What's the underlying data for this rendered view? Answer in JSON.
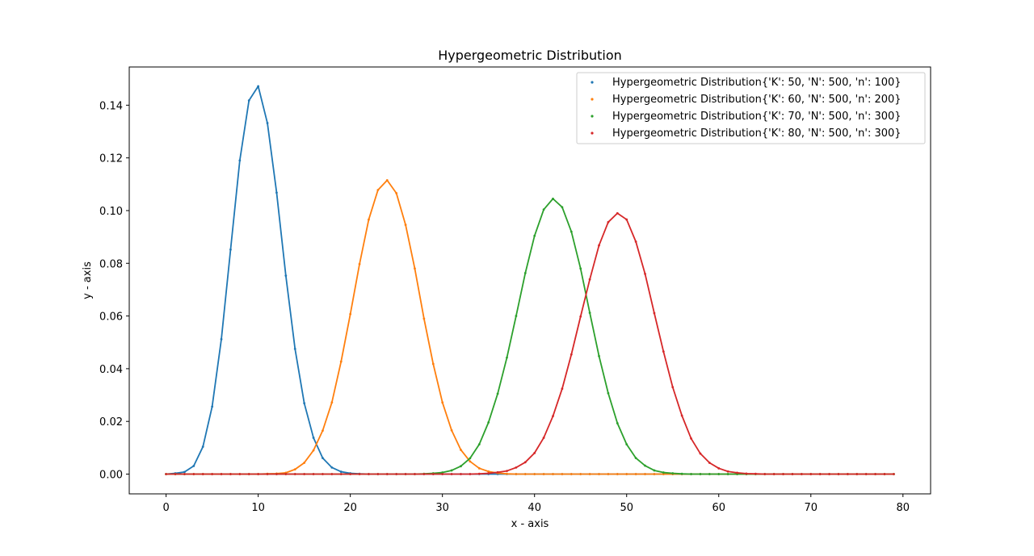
{
  "chart_data": {
    "type": "line",
    "title": "Hypergeometric Distribution",
    "xlabel": "x - axis",
    "ylabel": "y - axis",
    "xlim": [
      -4,
      83
    ],
    "ylim": [
      -0.0075,
      0.1545
    ],
    "xticks": [
      0,
      10,
      20,
      30,
      40,
      50,
      60,
      70,
      80
    ],
    "yticks": [
      0.0,
      0.02,
      0.04,
      0.06,
      0.08,
      0.1,
      0.12,
      0.14
    ],
    "ytick_labels": [
      "0.00",
      "0.02",
      "0.04",
      "0.06",
      "0.08",
      "0.10",
      "0.12",
      "0.14"
    ],
    "grid": false,
    "legend_position": "top-right",
    "x_range": [
      0,
      79
    ],
    "series": [
      {
        "name": "Hypergeometric Distribution{'K': 50, 'N': 500, 'n': 100}",
        "color": "#1f77b4",
        "values": [
          0.0,
          0.0003,
          0.0008,
          0.0031,
          0.0104,
          0.0256,
          0.0512,
          0.0852,
          0.119,
          0.1418,
          0.1472,
          0.1332,
          0.1068,
          0.0753,
          0.0475,
          0.0269,
          0.0138,
          0.0061,
          0.0025,
          0.0009,
          0.0003,
          0.0001,
          0,
          0,
          0,
          0,
          0,
          0,
          0,
          0,
          0,
          0,
          0,
          0,
          0,
          0,
          0,
          0,
          0,
          0,
          0,
          0,
          0,
          0,
          0,
          0,
          0,
          0,
          0,
          0,
          0,
          0,
          0,
          0,
          0,
          0,
          0,
          0,
          0,
          0,
          0,
          0,
          0,
          0,
          0,
          0,
          0,
          0,
          0,
          0,
          0,
          0,
          0,
          0,
          0,
          0,
          0,
          0,
          0,
          0
        ]
      },
      {
        "name": "Hypergeometric Distribution{'K': 60, 'N': 500, 'n': 200}",
        "color": "#ff7f0e",
        "values": [
          0,
          0,
          0,
          0,
          0,
          0,
          0,
          0,
          0,
          0,
          0,
          0.0001,
          0.0002,
          0.0005,
          0.0018,
          0.0043,
          0.009,
          0.0165,
          0.0272,
          0.0427,
          0.0607,
          0.0797,
          0.0966,
          0.1078,
          0.1115,
          0.1066,
          0.0946,
          0.078,
          0.059,
          0.0418,
          0.0272,
          0.0166,
          0.0092,
          0.0048,
          0.0022,
          0.001,
          0.0004,
          0.0001,
          0,
          0,
          0,
          0,
          0,
          0,
          0,
          0,
          0,
          0,
          0,
          0,
          0,
          0,
          0,
          0,
          0,
          0,
          0,
          0,
          0,
          0,
          0,
          0,
          0,
          0,
          0,
          0,
          0,
          0,
          0,
          0,
          0,
          0,
          0,
          0,
          0,
          0,
          0,
          0,
          0,
          0
        ]
      },
      {
        "name": "Hypergeometric Distribution{'K': 70, 'N': 500, 'n': 300}",
        "color": "#2ca02c",
        "values": [
          0,
          0,
          0,
          0,
          0,
          0,
          0,
          0,
          0,
          0,
          0,
          0,
          0,
          0,
          0,
          0,
          0,
          0,
          0,
          0,
          0,
          0,
          0,
          0,
          0,
          0,
          0,
          0,
          0.0001,
          0.0003,
          0.0006,
          0.0014,
          0.003,
          0.006,
          0.0113,
          0.0196,
          0.0305,
          0.0442,
          0.06,
          0.0763,
          0.0904,
          0.1004,
          0.1045,
          0.1013,
          0.092,
          0.078,
          0.0612,
          0.0448,
          0.0307,
          0.0193,
          0.0113,
          0.0061,
          0.0032,
          0.0014,
          0.0006,
          0.0003,
          0.0001,
          0,
          0,
          0,
          0,
          0,
          0,
          0,
          0,
          0,
          0,
          0,
          0,
          0,
          0,
          0,
          0,
          0,
          0,
          0,
          0,
          0,
          0,
          0
        ]
      },
      {
        "name": "Hypergeometric Distribution{'K': 80, 'N': 500, 'n': 300}",
        "color": "#d62728",
        "values": [
          0,
          0,
          0,
          0,
          0,
          0,
          0,
          0,
          0,
          0,
          0,
          0,
          0,
          0,
          0,
          0,
          0,
          0,
          0,
          0,
          0,
          0,
          0,
          0,
          0,
          0,
          0,
          0,
          0,
          0,
          0,
          0,
          0,
          0,
          0.0001,
          0.0003,
          0.0007,
          0.0012,
          0.0025,
          0.0045,
          0.008,
          0.0138,
          0.022,
          0.0324,
          0.0454,
          0.0598,
          0.0739,
          0.0868,
          0.0956,
          0.099,
          0.0966,
          0.0882,
          0.076,
          0.0611,
          0.0465,
          0.033,
          0.0222,
          0.0135,
          0.0078,
          0.0043,
          0.0022,
          0.001,
          0.0005,
          0.0002,
          0.0001,
          0,
          0,
          0,
          0,
          0,
          0,
          0,
          0,
          0,
          0,
          0,
          0,
          0,
          0,
          0
        ]
      }
    ]
  }
}
